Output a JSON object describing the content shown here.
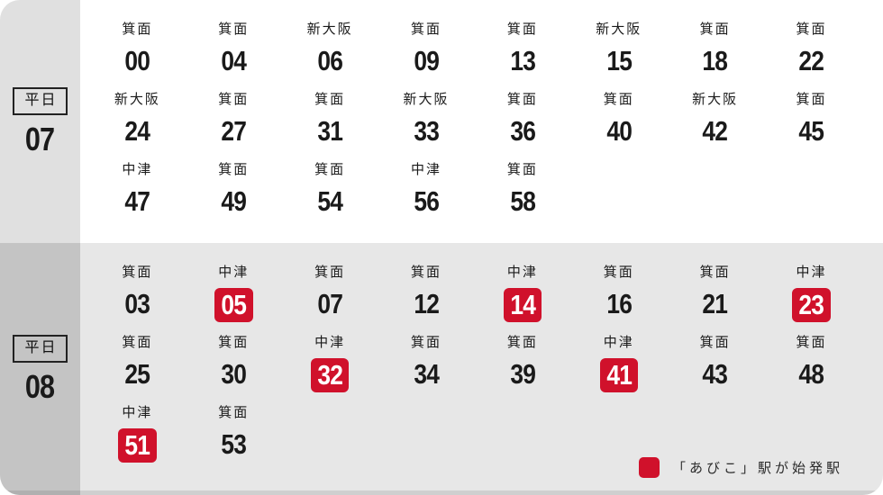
{
  "legend": {
    "label": "「あびこ」駅が始発駅",
    "swatch_color": "#d0112b"
  },
  "colors": {
    "highlight_red": "#d0112b",
    "text": "#1a1a1a"
  },
  "rows": [
    {
      "day_label": "平日",
      "hour": "07",
      "sidebar_bg": "#e0e0e0",
      "panel_bg": "#ffffff",
      "cells": [
        {
          "dest": "箕面",
          "minute": "00",
          "highlight": false
        },
        {
          "dest": "箕面",
          "minute": "04",
          "highlight": false
        },
        {
          "dest": "新大阪",
          "minute": "06",
          "highlight": false
        },
        {
          "dest": "箕面",
          "minute": "09",
          "highlight": false
        },
        {
          "dest": "箕面",
          "minute": "13",
          "highlight": false
        },
        {
          "dest": "新大阪",
          "minute": "15",
          "highlight": false
        },
        {
          "dest": "箕面",
          "minute": "18",
          "highlight": false
        },
        {
          "dest": "箕面",
          "minute": "22",
          "highlight": false
        },
        {
          "dest": "新大阪",
          "minute": "24",
          "highlight": false
        },
        {
          "dest": "箕面",
          "minute": "27",
          "highlight": false
        },
        {
          "dest": "箕面",
          "minute": "31",
          "highlight": false
        },
        {
          "dest": "新大阪",
          "minute": "33",
          "highlight": false
        },
        {
          "dest": "箕面",
          "minute": "36",
          "highlight": false
        },
        {
          "dest": "箕面",
          "minute": "40",
          "highlight": false
        },
        {
          "dest": "新大阪",
          "minute": "42",
          "highlight": false
        },
        {
          "dest": "箕面",
          "minute": "45",
          "highlight": false
        },
        {
          "dest": "中津",
          "minute": "47",
          "highlight": false
        },
        {
          "dest": "箕面",
          "minute": "49",
          "highlight": false
        },
        {
          "dest": "箕面",
          "minute": "54",
          "highlight": false
        },
        {
          "dest": "中津",
          "minute": "56",
          "highlight": false
        },
        {
          "dest": "箕面",
          "minute": "58",
          "highlight": false
        }
      ]
    },
    {
      "day_label": "平日",
      "hour": "08",
      "sidebar_bg": "#c4c4c4",
      "panel_bg": "#e7e7e7",
      "cells": [
        {
          "dest": "箕面",
          "minute": "03",
          "highlight": false
        },
        {
          "dest": "中津",
          "minute": "05",
          "highlight": true
        },
        {
          "dest": "箕面",
          "minute": "07",
          "highlight": false
        },
        {
          "dest": "箕面",
          "minute": "12",
          "highlight": false
        },
        {
          "dest": "中津",
          "minute": "14",
          "highlight": true
        },
        {
          "dest": "箕面",
          "minute": "16",
          "highlight": false
        },
        {
          "dest": "箕面",
          "minute": "21",
          "highlight": false
        },
        {
          "dest": "中津",
          "minute": "23",
          "highlight": true
        },
        {
          "dest": "箕面",
          "minute": "25",
          "highlight": false
        },
        {
          "dest": "箕面",
          "minute": "30",
          "highlight": false
        },
        {
          "dest": "中津",
          "minute": "32",
          "highlight": true
        },
        {
          "dest": "箕面",
          "minute": "34",
          "highlight": false
        },
        {
          "dest": "箕面",
          "minute": "39",
          "highlight": false
        },
        {
          "dest": "中津",
          "minute": "41",
          "highlight": true
        },
        {
          "dest": "箕面",
          "minute": "43",
          "highlight": false
        },
        {
          "dest": "箕面",
          "minute": "48",
          "highlight": false
        },
        {
          "dest": "中津",
          "minute": "51",
          "highlight": true
        },
        {
          "dest": "箕面",
          "minute": "53",
          "highlight": false
        }
      ]
    }
  ]
}
